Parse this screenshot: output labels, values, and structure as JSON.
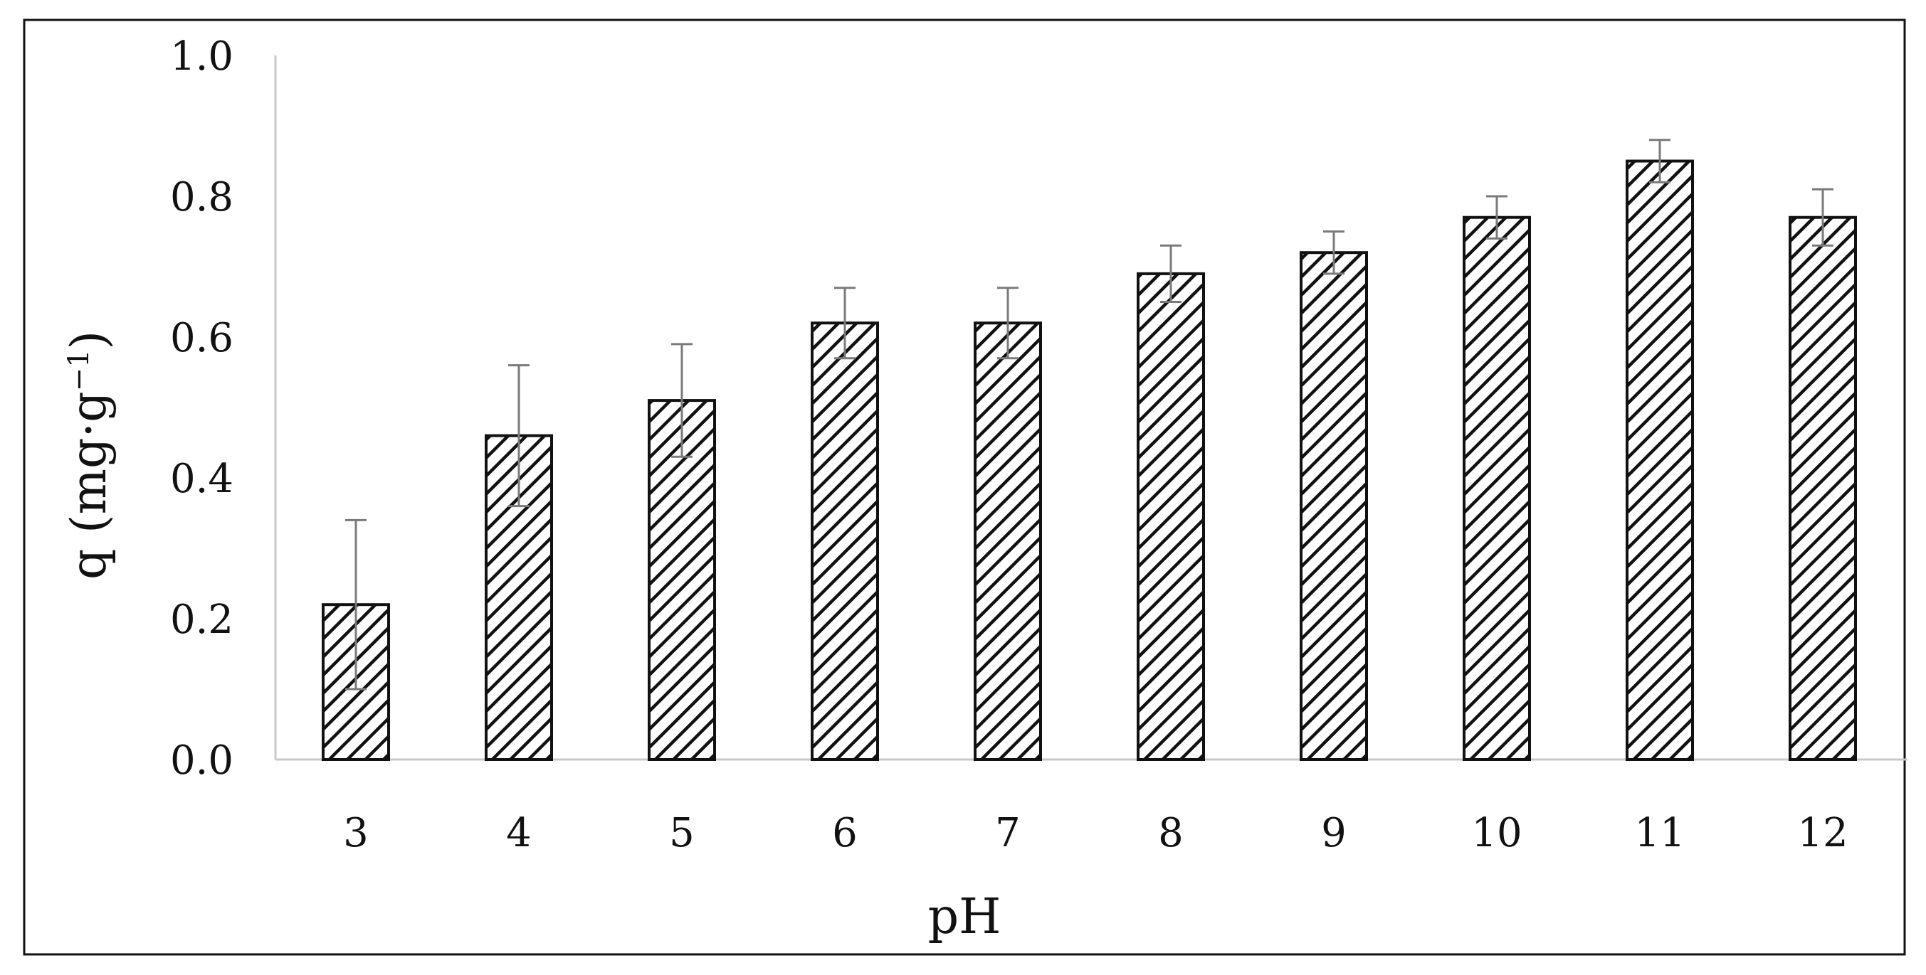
{
  "chart_data": {
    "type": "bar",
    "xlabel": "pH",
    "ylabel": {
      "base": "q (mg·g",
      "superscript": "−1",
      "close": ")"
    },
    "categories": [
      "3",
      "4",
      "5",
      "6",
      "7",
      "8",
      "9",
      "10",
      "11",
      "12"
    ],
    "values": [
      0.22,
      0.46,
      0.51,
      0.62,
      0.62,
      0.69,
      0.72,
      0.77,
      0.85,
      0.77
    ],
    "error": [
      0.12,
      0.1,
      0.08,
      0.05,
      0.05,
      0.04,
      0.03,
      0.03,
      0.03,
      0.04
    ],
    "ylim": [
      0.0,
      1.0
    ],
    "yticks": [
      "0.0",
      "0.2",
      "0.4",
      "0.6",
      "0.8",
      "1.0"
    ],
    "bar_fill": "hatched diagonal black on white",
    "grid": false,
    "legend": "none"
  }
}
